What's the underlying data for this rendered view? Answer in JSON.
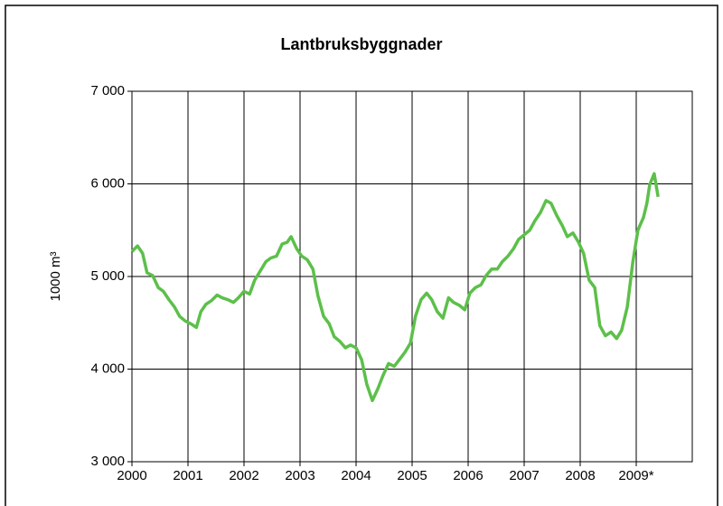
{
  "chart_data": {
    "type": "line",
    "title": "Lantbruksbyggnader",
    "y_label": "1000 m³",
    "x": [
      2000.0,
      2000.1,
      2000.19,
      2000.27,
      2000.37,
      2000.47,
      2000.56,
      2000.66,
      2000.76,
      2000.85,
      2000.95,
      2001.05,
      2001.15,
      2001.23,
      2001.32,
      2001.42,
      2001.52,
      2001.61,
      2001.71,
      2001.81,
      2001.9,
      2002.0,
      2002.1,
      2002.19,
      2002.29,
      2002.39,
      2002.48,
      2002.58,
      2002.68,
      2002.77,
      2002.84,
      2002.94,
      2003.03,
      2003.13,
      2003.23,
      2003.32,
      2003.42,
      2003.52,
      2003.61,
      2003.71,
      2003.81,
      2003.9,
      2004.0,
      2004.1,
      2004.19,
      2004.29,
      2004.39,
      2004.48,
      2004.58,
      2004.68,
      2004.77,
      2004.87,
      2004.97,
      2005.06,
      2005.16,
      2005.26,
      2005.35,
      2005.45,
      2005.55,
      2005.65,
      2005.74,
      2005.84,
      2005.94,
      2006.03,
      2006.13,
      2006.23,
      2006.32,
      2006.42,
      2006.52,
      2006.61,
      2006.71,
      2006.81,
      2006.9,
      2007.0,
      2007.1,
      2007.19,
      2007.29,
      2007.39,
      2007.48,
      2007.58,
      2007.68,
      2007.77,
      2007.87,
      2007.97,
      2008.06,
      2008.16,
      2008.26,
      2008.35,
      2008.45,
      2008.55,
      2008.65,
      2008.74,
      2008.84,
      2008.94,
      2009.03,
      2009.13,
      2009.19,
      2009.24,
      2009.32,
      2009.39
    ],
    "series": [
      {
        "name": "Lantbruksbyggnader",
        "color": "#5cc04a",
        "values": [
          5270,
          5330,
          5250,
          5040,
          5010,
          4880,
          4840,
          4750,
          4670,
          4570,
          4520,
          4490,
          4450,
          4620,
          4700,
          4740,
          4800,
          4770,
          4750,
          4720,
          4770,
          4840,
          4810,
          4960,
          5060,
          5160,
          5200,
          5220,
          5350,
          5370,
          5430,
          5300,
          5220,
          5180,
          5080,
          4790,
          4570,
          4490,
          4350,
          4300,
          4230,
          4260,
          4230,
          4100,
          3840,
          3660,
          3790,
          3930,
          4060,
          4030,
          4100,
          4180,
          4280,
          4570,
          4750,
          4820,
          4750,
          4620,
          4550,
          4770,
          4720,
          4690,
          4640,
          4820,
          4880,
          4910,
          5010,
          5080,
          5080,
          5160,
          5220,
          5300,
          5400,
          5450,
          5500,
          5600,
          5690,
          5820,
          5790,
          5660,
          5550,
          5430,
          5470,
          5370,
          5250,
          4960,
          4880,
          4470,
          4360,
          4400,
          4330,
          4420,
          4670,
          5160,
          5500,
          5640,
          5790,
          5990,
          6110,
          5860
        ]
      }
    ],
    "xlim": [
      2000,
      2010
    ],
    "xticks": [
      2000,
      2001,
      2002,
      2003,
      2004,
      2005,
      2006,
      2007,
      2008,
      {
        "value": 2009,
        "label": "2009*"
      }
    ],
    "ylim": [
      3000,
      7000
    ],
    "yticks": [
      {
        "value": 3000,
        "label": "3 000"
      },
      {
        "value": 4000,
        "label": "4 000"
      },
      {
        "value": 5000,
        "label": "5 000"
      },
      {
        "value": 6000,
        "label": "6 000"
      },
      {
        "value": 7000,
        "label": "7 000"
      }
    ],
    "grid": true
  }
}
